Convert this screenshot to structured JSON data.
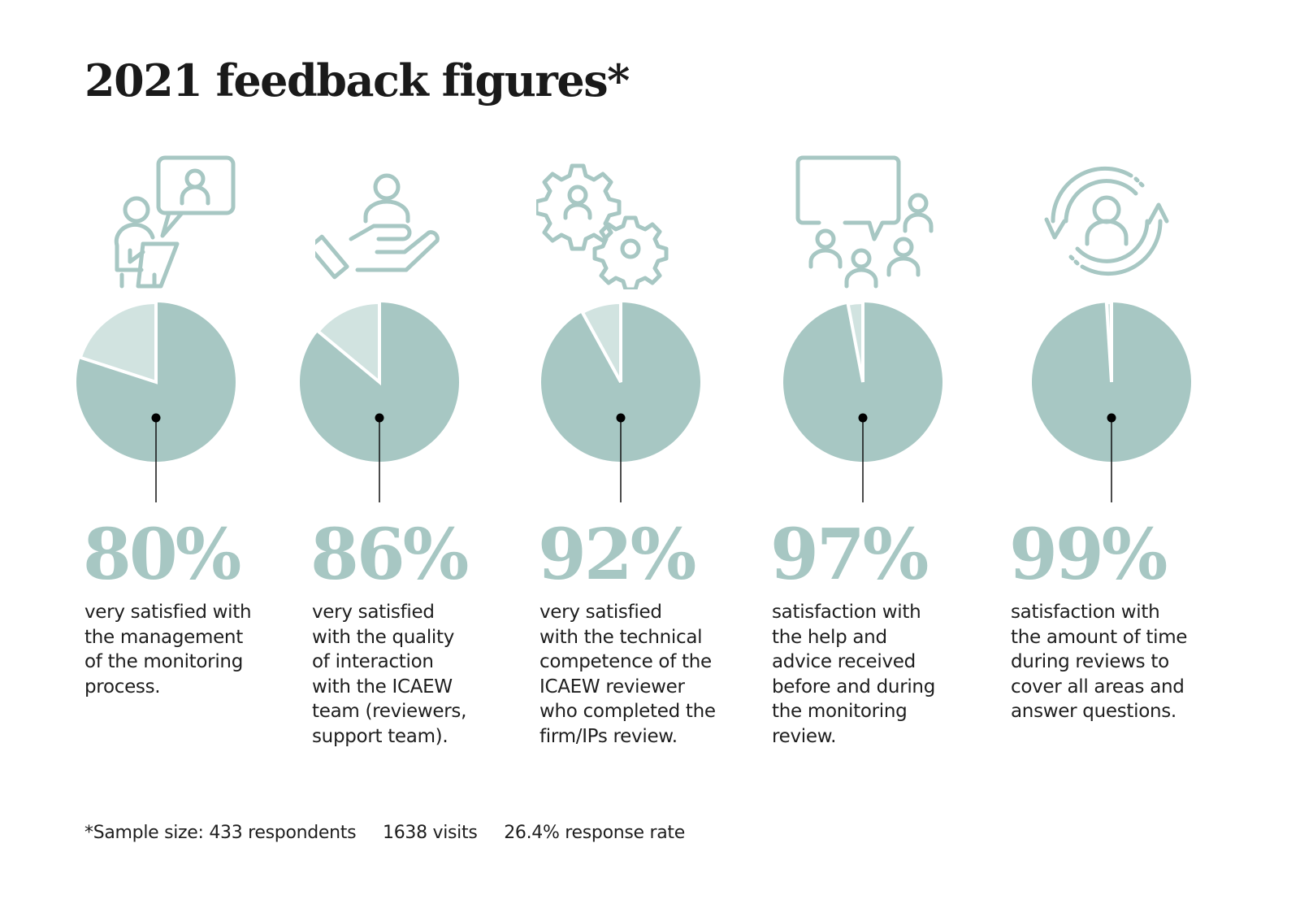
{
  "title": "2021 feedback figures*",
  "colors": {
    "accent": "#a7c7c3",
    "accent_light": "#d1e3e0",
    "text": "#1a1a1a",
    "pointer": "#000000"
  },
  "chart_data": {
    "type": "pie",
    "title": "2021 feedback figures*",
    "charts": [
      {
        "label": "80%",
        "value": 80,
        "remainder": 20,
        "icon": "presenter-speech-bubble-icon",
        "description": "very satisfied with\nthe management\nof the monitoring\nprocess."
      },
      {
        "label": "86%",
        "value": 86,
        "remainder": 14,
        "icon": "hand-holding-person-icon",
        "description": "very satisfied\nwith the quality\nof interaction\nwith the ICAEW\nteam (reviewers,\nsupport team)."
      },
      {
        "label": "92%",
        "value": 92,
        "remainder": 8,
        "icon": "gears-person-icon",
        "description": "very satisfied\nwith the technical\ncompetence of the\nICAEW reviewer\nwho completed the\nfirm/IPs review."
      },
      {
        "label": "97%",
        "value": 97,
        "remainder": 3,
        "icon": "group-speech-bubble-icon",
        "description": "satisfaction with\nthe help and\nadvice received\nbefore and during\nthe monitoring\nreview."
      },
      {
        "label": "99%",
        "value": 99,
        "remainder": 1,
        "icon": "person-cycle-arrows-icon",
        "description": "satisfaction with\nthe amount of time\nduring reviews to\ncover all areas and\nanswer questions."
      }
    ]
  },
  "footnote": {
    "sample": "*Sample size: 433 respondents",
    "visits": "1638 visits",
    "response_rate": "26.4% response rate"
  }
}
